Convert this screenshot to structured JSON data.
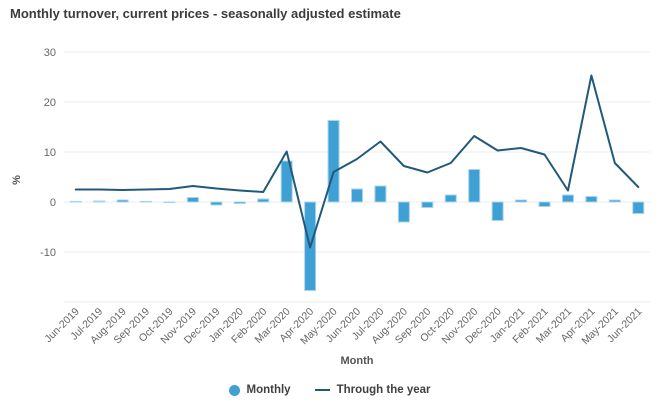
{
  "title": "Monthly turnover, current prices - seasonally adjusted estimate",
  "colors": {
    "bar": "#3fa0d4",
    "bar_border": "#a9d4ec",
    "line": "#20597c",
    "grid": "#e9edf2",
    "tick_text": "#666666",
    "axis_label_text": "#545454",
    "title_text": "#3b3b3b",
    "legend_text": "#404040"
  },
  "legend": {
    "items": [
      {
        "label": "Monthly",
        "marker": "circle-icon"
      },
      {
        "label": "Through the year",
        "marker": "line-icon"
      }
    ]
  },
  "chart_data": {
    "type": "bar+line",
    "title": "Monthly turnover, current prices - seasonally adjusted estimate",
    "xlabel": "Month",
    "ylabel": "%",
    "ylim": [
      -20,
      30
    ],
    "yticks": [
      30,
      20,
      10,
      0,
      -10
    ],
    "grid": true,
    "legend_position": "bottom",
    "categories": [
      "Jun-2019",
      "Jul-2019",
      "Aug-2019",
      "Sep-2019",
      "Oct-2019",
      "Nov-2019",
      "Dec-2019",
      "Jan-2020",
      "Feb-2020",
      "Mar-2020",
      "Apr-2020",
      "May-2020",
      "Jun-2020",
      "Jul-2020",
      "Aug-2020",
      "Sep-2020",
      "Oct-2020",
      "Nov-2020",
      "Dec-2020",
      "Jan-2021",
      "Feb-2021",
      "Mar-2021",
      "Apr-2021",
      "May-2021",
      "Jun-2021"
    ],
    "series": [
      {
        "name": "Monthly",
        "type": "bar",
        "values": [
          0.1,
          0.2,
          0.4,
          0.1,
          -0.1,
          0.9,
          -0.6,
          -0.3,
          0.6,
          8.2,
          -17.7,
          16.3,
          2.6,
          3.2,
          -4.0,
          -1.1,
          1.4,
          6.5,
          -3.7,
          0.4,
          -0.9,
          1.4,
          1.1,
          0.4,
          -2.3
        ]
      },
      {
        "name": "Through the year",
        "type": "line",
        "values": [
          2.5,
          2.5,
          2.4,
          2.5,
          2.6,
          3.2,
          2.7,
          2.3,
          2.0,
          10.1,
          -9.1,
          6.0,
          8.6,
          12.1,
          7.2,
          5.9,
          7.8,
          13.2,
          10.3,
          10.8,
          9.5,
          2.3,
          25.3,
          7.8,
          3.0
        ]
      }
    ]
  }
}
